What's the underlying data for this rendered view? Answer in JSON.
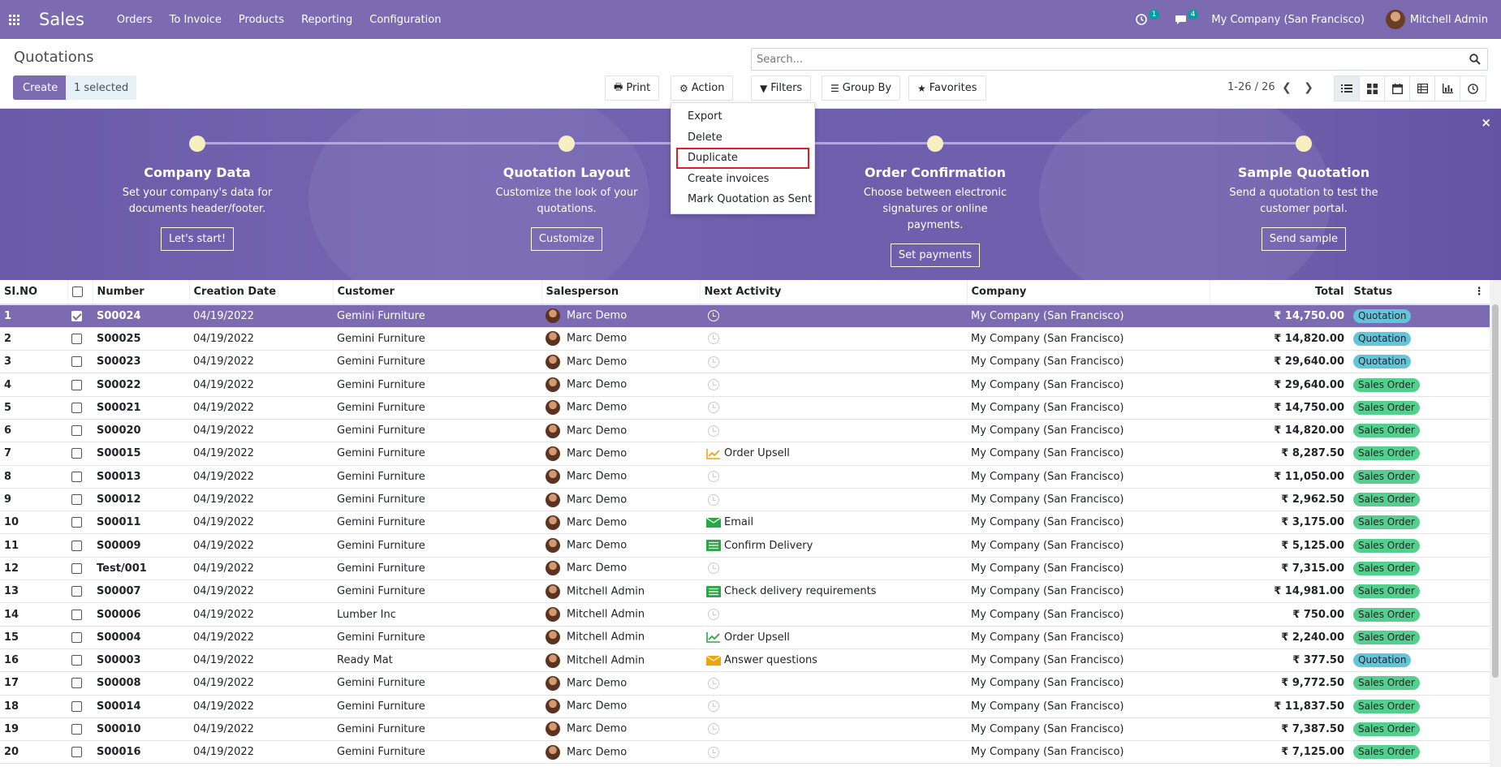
{
  "navbar": {
    "brand": "Sales",
    "menu": [
      "Orders",
      "To Invoice",
      "Products",
      "Reporting",
      "Configuration"
    ],
    "activity_count": "1",
    "message_count": "4",
    "company": "My Company (San Francisco)",
    "user": "Mitchell Admin"
  },
  "control_panel": {
    "title": "Quotations",
    "search_placeholder": "Search...",
    "create_label": "Create",
    "selected_label": "1 selected",
    "print_label": "Print",
    "action_label": "Action",
    "filters_label": "Filters",
    "groupby_label": "Group By",
    "favorites_label": "Favorites",
    "pager": "1-26 / 26"
  },
  "action_menu": {
    "items": [
      "Export",
      "Delete",
      "Duplicate",
      "Create invoices",
      "Mark Quotation as Sent"
    ],
    "highlighted": "Duplicate"
  },
  "banner": {
    "steps": [
      {
        "title": "Company Data",
        "desc": "Set your company's data for documents header/footer.",
        "button": "Let's start!"
      },
      {
        "title": "Quotation Layout",
        "desc": "Customize the look of your quotations.",
        "button": "Customize"
      },
      {
        "title": "Order Confirmation",
        "desc": "Choose between electronic signatures or online payments.",
        "button": "Set payments"
      },
      {
        "title": "Sample Quotation",
        "desc": "Send a quotation to test the customer portal.",
        "button": "Send sample"
      }
    ],
    "close": "×"
  },
  "table": {
    "columns": [
      "SI.NO",
      "",
      "Number",
      "Creation Date",
      "Customer",
      "Salesperson",
      "Next Activity",
      "Company",
      "Total",
      "Status"
    ],
    "rows": [
      {
        "sino": "1",
        "selected": true,
        "number": "S00024",
        "date": "04/19/2022",
        "customer": "Gemini Furniture",
        "salesperson": "Marc Demo",
        "activity": "",
        "activity_icon": "clock-icon",
        "company": "My Company (San Francisco)",
        "total": "₹ 14,750.00",
        "status": "Quotation"
      },
      {
        "sino": "2",
        "selected": false,
        "number": "S00025",
        "date": "04/19/2022",
        "customer": "Gemini Furniture",
        "salesperson": "Marc Demo",
        "activity": "",
        "activity_icon": "clock-icon",
        "company": "My Company (San Francisco)",
        "total": "₹ 14,820.00",
        "status": "Quotation"
      },
      {
        "sino": "3",
        "selected": false,
        "number": "S00023",
        "date": "04/19/2022",
        "customer": "Gemini Furniture",
        "salesperson": "Marc Demo",
        "activity": "",
        "activity_icon": "clock-icon",
        "company": "My Company (San Francisco)",
        "total": "₹ 29,640.00",
        "status": "Quotation"
      },
      {
        "sino": "4",
        "selected": false,
        "number": "S00022",
        "date": "04/19/2022",
        "customer": "Gemini Furniture",
        "salesperson": "Marc Demo",
        "activity": "",
        "activity_icon": "clock-icon",
        "company": "My Company (San Francisco)",
        "total": "₹ 29,640.00",
        "status": "Sales Order"
      },
      {
        "sino": "5",
        "selected": false,
        "number": "S00021",
        "date": "04/19/2022",
        "customer": "Gemini Furniture",
        "salesperson": "Marc Demo",
        "activity": "",
        "activity_icon": "clock-icon",
        "company": "My Company (San Francisco)",
        "total": "₹ 14,750.00",
        "status": "Sales Order"
      },
      {
        "sino": "6",
        "selected": false,
        "number": "S00020",
        "date": "04/19/2022",
        "customer": "Gemini Furniture",
        "salesperson": "Marc Demo",
        "activity": "",
        "activity_icon": "clock-icon",
        "company": "My Company (San Francisco)",
        "total": "₹ 14,820.00",
        "status": "Sales Order"
      },
      {
        "sino": "7",
        "selected": false,
        "number": "S00015",
        "date": "04/19/2022",
        "customer": "Gemini Furniture",
        "salesperson": "Marc Demo",
        "activity": "Order Upsell",
        "activity_icon": "chart-icon",
        "activity_color": "#f0a30a",
        "company": "My Company (San Francisco)",
        "total": "₹ 8,287.50",
        "status": "Sales Order"
      },
      {
        "sino": "8",
        "selected": false,
        "number": "S00013",
        "date": "04/19/2022",
        "customer": "Gemini Furniture",
        "salesperson": "Marc Demo",
        "activity": "",
        "activity_icon": "clock-icon",
        "company": "My Company (San Francisco)",
        "total": "₹ 11,050.00",
        "status": "Sales Order"
      },
      {
        "sino": "9",
        "selected": false,
        "number": "S00012",
        "date": "04/19/2022",
        "customer": "Gemini Furniture",
        "salesperson": "Marc Demo",
        "activity": "",
        "activity_icon": "clock-icon",
        "company": "My Company (San Francisco)",
        "total": "₹ 2,962.50",
        "status": "Sales Order"
      },
      {
        "sino": "10",
        "selected": false,
        "number": "S00011",
        "date": "04/19/2022",
        "customer": "Gemini Furniture",
        "salesperson": "Marc Demo",
        "activity": "Email",
        "activity_icon": "envelope-icon",
        "activity_color": "#28a745",
        "company": "My Company (San Francisco)",
        "total": "₹ 3,175.00",
        "status": "Sales Order"
      },
      {
        "sino": "11",
        "selected": false,
        "number": "S00009",
        "date": "04/19/2022",
        "customer": "Gemini Furniture",
        "salesperson": "Marc Demo",
        "activity": "Confirm Delivery",
        "activity_icon": "tasks-icon",
        "activity_color": "#28a745",
        "company": "My Company (San Francisco)",
        "total": "₹ 5,125.00",
        "status": "Sales Order"
      },
      {
        "sino": "12",
        "selected": false,
        "number": "Test/001",
        "date": "04/19/2022",
        "customer": "Gemini Furniture",
        "salesperson": "Marc Demo",
        "activity": "",
        "activity_icon": "clock-icon",
        "company": "My Company (San Francisco)",
        "total": "₹ 7,315.00",
        "status": "Sales Order"
      },
      {
        "sino": "13",
        "selected": false,
        "number": "S00007",
        "date": "04/19/2022",
        "customer": "Gemini Furniture",
        "salesperson": "Mitchell Admin",
        "activity": "Check delivery requirements",
        "activity_icon": "tasks-icon",
        "activity_color": "#28a745",
        "company": "My Company (San Francisco)",
        "total": "₹ 14,981.00",
        "status": "Sales Order"
      },
      {
        "sino": "14",
        "selected": false,
        "number": "S00006",
        "date": "04/19/2022",
        "customer": "Lumber Inc",
        "salesperson": "Mitchell Admin",
        "activity": "",
        "activity_icon": "clock-icon",
        "company": "My Company (San Francisco)",
        "total": "₹ 750.00",
        "status": "Sales Order"
      },
      {
        "sino": "15",
        "selected": false,
        "number": "S00004",
        "date": "04/19/2022",
        "customer": "Gemini Furniture",
        "salesperson": "Mitchell Admin",
        "activity": "Order Upsell",
        "activity_icon": "chart-icon",
        "activity_color": "#28a745",
        "company": "My Company (San Francisco)",
        "total": "₹ 2,240.00",
        "status": "Sales Order"
      },
      {
        "sino": "16",
        "selected": false,
        "number": "S00003",
        "date": "04/19/2022",
        "customer": "Ready Mat",
        "salesperson": "Mitchell Admin",
        "activity": "Answer questions",
        "activity_icon": "envelope-icon",
        "activity_color": "#f0a30a",
        "company": "My Company (San Francisco)",
        "total": "₹ 377.50",
        "status": "Quotation"
      },
      {
        "sino": "17",
        "selected": false,
        "number": "S00008",
        "date": "04/19/2022",
        "customer": "Gemini Furniture",
        "salesperson": "Marc Demo",
        "activity": "",
        "activity_icon": "clock-icon",
        "company": "My Company (San Francisco)",
        "total": "₹ 9,772.50",
        "status": "Sales Order"
      },
      {
        "sino": "18",
        "selected": false,
        "number": "S00014",
        "date": "04/19/2022",
        "customer": "Gemini Furniture",
        "salesperson": "Marc Demo",
        "activity": "",
        "activity_icon": "clock-icon",
        "company": "My Company (San Francisco)",
        "total": "₹ 11,837.50",
        "status": "Sales Order"
      },
      {
        "sino": "19",
        "selected": false,
        "number": "S00010",
        "date": "04/19/2022",
        "customer": "Gemini Furniture",
        "salesperson": "Marc Demo",
        "activity": "",
        "activity_icon": "clock-icon",
        "company": "My Company (San Francisco)",
        "total": "₹ 7,387.50",
        "status": "Sales Order"
      },
      {
        "sino": "20",
        "selected": false,
        "number": "S00016",
        "date": "04/19/2022",
        "customer": "Gemini Furniture",
        "salesperson": "Marc Demo",
        "activity": "",
        "activity_icon": "clock-icon",
        "company": "My Company (San Francisco)",
        "total": "₹ 7,125.00",
        "status": "Sales Order"
      }
    ]
  },
  "colors": {
    "brand": "#7c6bb0",
    "quotation_badge": "#5fc6de",
    "sales_order_badge": "#55cf8d"
  }
}
